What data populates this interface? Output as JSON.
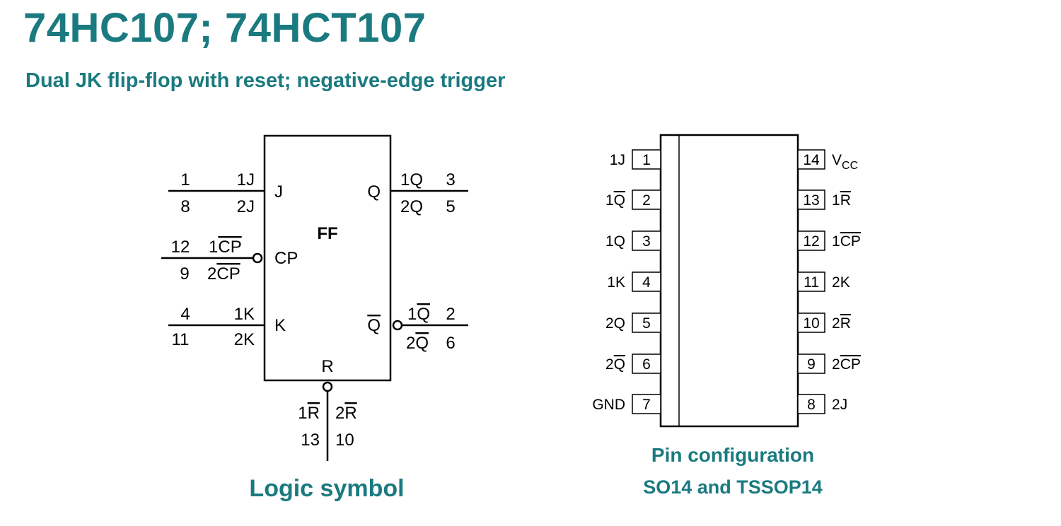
{
  "header": {
    "title": "74HC107; 74HCT107",
    "subtitle": "Dual JK flip-flop with reset; negative-edge trigger"
  },
  "logic_symbol": {
    "caption": "Logic symbol",
    "block_label": "FF",
    "inputs": {
      "J": {
        "label": "J",
        "pins": [
          "1",
          "8"
        ],
        "names": [
          "1J",
          "2J"
        ]
      },
      "CP": {
        "label": "CP",
        "pins": [
          "12",
          "9"
        ],
        "names": [
          "1CP",
          "2CP"
        ],
        "names_overlined_part": [
          "CP",
          "CP"
        ]
      },
      "K": {
        "label": "K",
        "pins": [
          "4",
          "11"
        ],
        "names": [
          "1K",
          "2K"
        ]
      }
    },
    "outputs": {
      "Q": {
        "label": "Q",
        "pins": [
          "3",
          "5"
        ],
        "names": [
          "1Q",
          "2Q"
        ]
      },
      "Qn": {
        "label": "Q",
        "pins": [
          "2",
          "6"
        ],
        "names": [
          "1Q",
          "2Q"
        ]
      }
    },
    "reset": {
      "label": "R",
      "names": [
        "1R",
        "2R"
      ],
      "pins": [
        "13",
        "10"
      ]
    }
  },
  "pin_configuration": {
    "caption_line1": "Pin configuration",
    "caption_line2": "SO14 and TSSOP14",
    "left_pins": [
      {
        "number": "1",
        "prefix": "1",
        "name": "J",
        "overline": false
      },
      {
        "number": "2",
        "prefix": "1",
        "name": "Q",
        "overline": true
      },
      {
        "number": "3",
        "prefix": "1",
        "name": "Q",
        "overline": false
      },
      {
        "number": "4",
        "prefix": "1",
        "name": "K",
        "overline": false
      },
      {
        "number": "5",
        "prefix": "2",
        "name": "Q",
        "overline": false
      },
      {
        "number": "6",
        "prefix": "2",
        "name": "Q",
        "overline": true
      },
      {
        "number": "7",
        "prefix": "",
        "name": "GND",
        "overline": false
      }
    ],
    "right_pins": [
      {
        "number": "14",
        "prefix": "V",
        "name": "CC",
        "subscript": true
      },
      {
        "number": "13",
        "prefix": "1",
        "name": "R",
        "overline": true
      },
      {
        "number": "12",
        "prefix": "1",
        "name": "CP",
        "overline": true
      },
      {
        "number": "11",
        "prefix": "2",
        "name": "K",
        "overline": false
      },
      {
        "number": "10",
        "prefix": "2",
        "name": "R",
        "overline": true
      },
      {
        "number": "9",
        "prefix": "2",
        "name": "CP",
        "overline": true
      },
      {
        "number": "8",
        "prefix": "2",
        "name": "J",
        "overline": false
      }
    ]
  }
}
